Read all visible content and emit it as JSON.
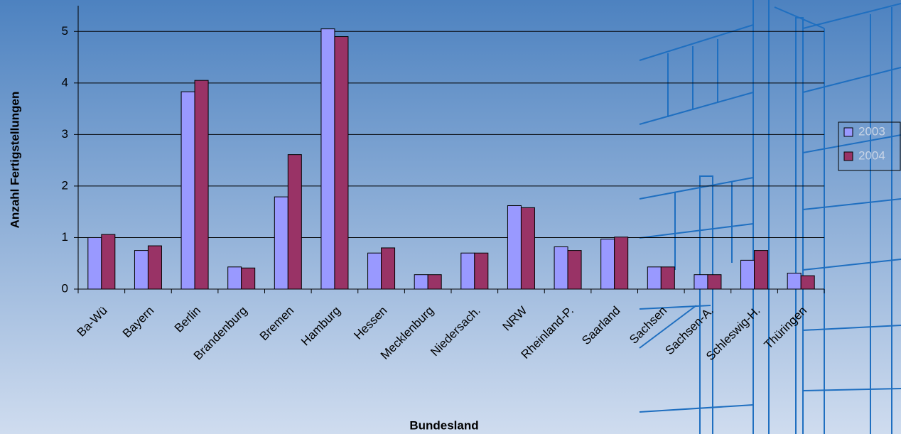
{
  "chart_data": {
    "type": "bar",
    "x_label": "Bundesland",
    "y_label": "Anzahl Fertigstellungen",
    "categories": [
      "Ba-Wü",
      "Bayern",
      "Berlin",
      "Brandenburg",
      "Bremen",
      "Hamburg",
      "Hessen",
      "Mecklenburg",
      "Niedersach.",
      "NRW",
      "Rheinland-P.",
      "Saarland",
      "Sachsen",
      "Sachsen-A.",
      "Schleswig-H.",
      "Thüringen"
    ],
    "series": [
      {
        "name": "2003",
        "color": "#9999ff",
        "values": [
          1.0,
          0.75,
          3.83,
          0.43,
          1.79,
          5.05,
          0.7,
          0.28,
          0.7,
          1.62,
          0.82,
          0.97,
          0.43,
          0.28,
          0.56,
          0.31
        ]
      },
      {
        "name": "2004",
        "color": "#993366",
        "values": [
          1.06,
          0.84,
          4.05,
          0.41,
          2.61,
          4.9,
          0.8,
          0.28,
          0.7,
          1.58,
          0.75,
          1.01,
          0.43,
          0.28,
          0.75,
          0.26
        ]
      }
    ],
    "ylim": [
      0,
      5.5
    ],
    "yticks": [
      0,
      1,
      2,
      3,
      4,
      5
    ],
    "grid": true,
    "legend": "right"
  }
}
